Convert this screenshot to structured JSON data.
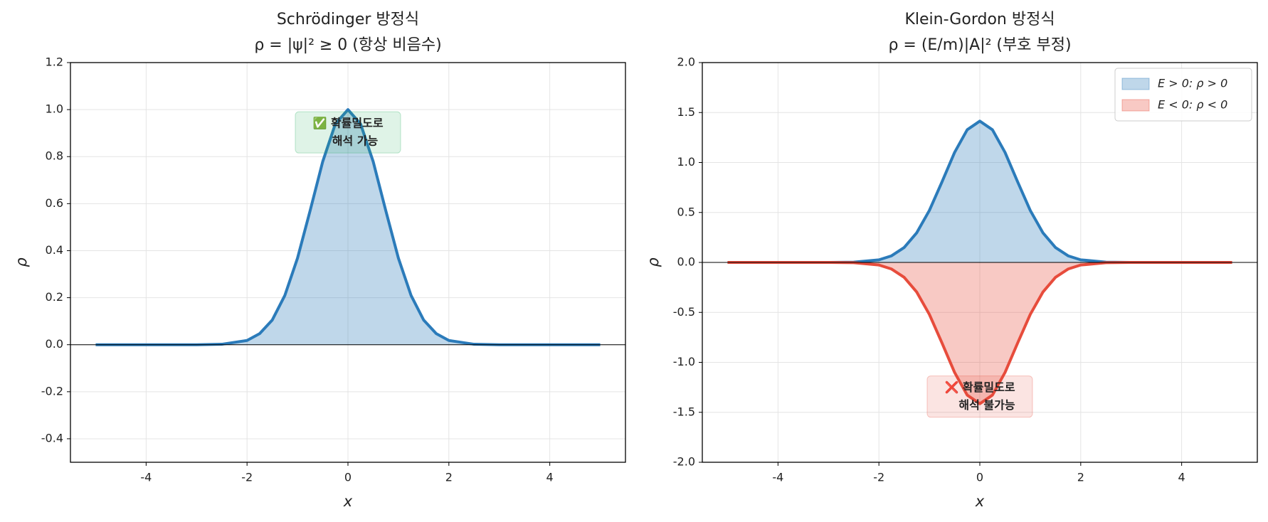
{
  "chart_data": [
    {
      "type": "line",
      "title": "Schrödinger 방정식",
      "subtitle": "ρ = |ψ|² ≥ 0 (항상 비음수)",
      "x_label": "x",
      "y_label": "ρ",
      "x": [
        -5,
        -4,
        -3,
        -2.5,
        -2,
        -1.75,
        -1.5,
        -1.25,
        -1,
        -0.75,
        -0.5,
        -0.25,
        0,
        0.25,
        0.5,
        0.75,
        1,
        1.25,
        1.5,
        1.75,
        2,
        2.5,
        3,
        4,
        5
      ],
      "series": [
        {
          "color": "#2b7bba",
          "fill": true,
          "values": [
            0,
            0,
            0,
            0.002,
            0.018,
            0.047,
            0.105,
            0.21,
            0.368,
            0.57,
            0.779,
            0.939,
            1,
            0.939,
            0.779,
            0.57,
            0.368,
            0.21,
            0.105,
            0.047,
            0.018,
            0.002,
            0,
            0,
            0
          ]
        }
      ],
      "xlim": [
        -5.5,
        5.5
      ],
      "xticks": [
        -4,
        -2,
        0,
        2,
        4
      ],
      "ylim": [
        -0.5,
        1.2
      ],
      "yticks": [
        -0.4,
        -0.2,
        {
          "value": 0,
          "label": "0.0"
        },
        0.2,
        0.4,
        0.6,
        0.8,
        {
          "value": 1,
          "label": "1.0"
        },
        1.2
      ],
      "grid": true,
      "annotation": {
        "lines": [
          "✅ 확률밀도로",
          "해석 가능"
        ],
        "color": "#27ae60"
      }
    },
    {
      "type": "line",
      "title": "Klein-Gordon 방정식",
      "subtitle": "ρ = (E/m)|A|² (부호 부정)",
      "x_label": "x",
      "y_label": "ρ",
      "x": [
        -5,
        -4,
        -3,
        -2.5,
        -2,
        -1.75,
        -1.5,
        -1.25,
        -1,
        -0.75,
        -0.5,
        -0.25,
        0,
        0.25,
        0.5,
        0.75,
        1,
        1.25,
        1.5,
        1.75,
        2,
        2.5,
        3,
        4,
        5
      ],
      "series": [
        {
          "name": "E > 0: ρ > 0",
          "color": "#2b7bba",
          "fill": true,
          "values": [
            0,
            0,
            0,
            0.003,
            0.026,
            0.066,
            0.149,
            0.297,
            0.52,
            0.806,
            1.101,
            1.328,
            1.414,
            1.328,
            1.101,
            0.806,
            0.52,
            0.297,
            0.149,
            0.066,
            0.026,
            0.003,
            0,
            0,
            0
          ]
        },
        {
          "name": "E < 0: ρ < 0",
          "color": "#e74c3c",
          "fill": true,
          "values": [
            0,
            0,
            0,
            -0.003,
            -0.026,
            -0.066,
            -0.149,
            -0.297,
            -0.52,
            -0.806,
            -1.101,
            -1.328,
            -1.414,
            -1.328,
            -1.101,
            -0.806,
            -0.52,
            -0.297,
            -0.149,
            -0.066,
            -0.026,
            -0.003,
            0,
            0,
            0
          ]
        }
      ],
      "xlim": [
        -5.5,
        5.5
      ],
      "xticks": [
        -4,
        -2,
        0,
        2,
        4
      ],
      "ylim": [
        -2,
        2
      ],
      "yticks": [
        {
          "value": -2,
          "label": "-2.0"
        },
        -1.5,
        {
          "value": -1,
          "label": "-1.0"
        },
        -0.5,
        {
          "value": 0,
          "label": "0.0"
        },
        0.5,
        {
          "value": 1,
          "label": "1.0"
        },
        1.5,
        {
          "value": 2,
          "label": "2.0"
        }
      ],
      "grid": true,
      "legend": "upper right",
      "annotation": {
        "lines": [
          "❌ 확률밀도로",
          "해석 불가능"
        ],
        "color": "#e74c3c"
      }
    }
  ]
}
